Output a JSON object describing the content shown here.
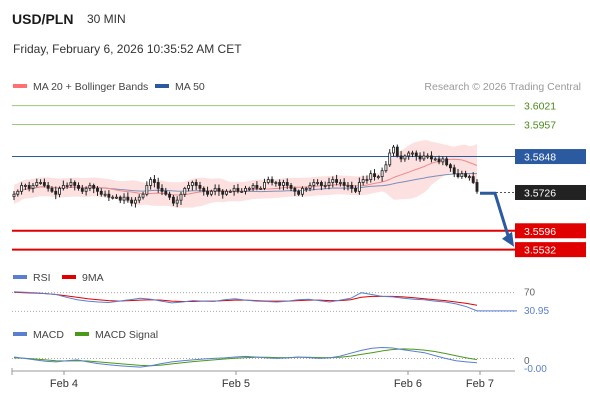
{
  "header": {
    "symbol": "USD/PLN",
    "timeframe": "30 MIN",
    "datetime": "Friday, February 6, 2026 10:35:52 AM CET"
  },
  "legend": {
    "ma20": "MA 20 + Bollinger Bands",
    "ma50": "MA 50",
    "credit": "Research © 2026 Trading Central",
    "ma20_color": "#ff7070",
    "ma50_color": "#2c5aa0"
  },
  "chart_data": {
    "type": "candlestick",
    "ylim": [
      3.549,
      3.604
    ],
    "levels": [
      {
        "value": 3.6021,
        "label": "3.6021",
        "kind": "resistance"
      },
      {
        "value": 3.5957,
        "label": "3.5957",
        "kind": "resistance"
      },
      {
        "value": 3.5848,
        "label": "3.5848",
        "kind": "pivot"
      },
      {
        "value": 3.5726,
        "label": "3.5726",
        "kind": "last"
      },
      {
        "value": 3.5596,
        "label": "3.5596",
        "kind": "target"
      },
      {
        "value": 3.5532,
        "label": "3.5532",
        "kind": "target"
      }
    ],
    "x_ticks": [
      "Feb 4",
      "Feb 5",
      "Feb 6",
      "Feb 7"
    ],
    "closes": [
      3.572,
      3.573,
      3.575,
      3.575,
      3.574,
      3.575,
      3.576,
      3.576,
      3.575,
      3.574,
      3.573,
      3.572,
      3.574,
      3.575,
      3.575,
      3.576,
      3.575,
      3.574,
      3.573,
      3.574,
      3.575,
      3.574,
      3.573,
      3.572,
      3.572,
      3.571,
      3.571,
      3.571,
      3.57,
      3.571,
      3.57,
      3.569,
      3.57,
      3.571,
      3.572,
      3.575,
      3.577,
      3.576,
      3.574,
      3.573,
      3.572,
      3.571,
      3.569,
      3.57,
      3.572,
      3.574,
      3.575,
      3.576,
      3.575,
      3.574,
      3.573,
      3.572,
      3.573,
      3.574,
      3.573,
      3.572,
      3.573,
      3.573,
      3.574,
      3.573,
      3.573,
      3.574,
      3.574,
      3.575,
      3.574,
      3.574,
      3.576,
      3.577,
      3.576,
      3.576,
      3.575,
      3.576,
      3.575,
      3.574,
      3.573,
      3.572,
      3.574,
      3.574,
      3.575,
      3.576,
      3.576,
      3.575,
      3.575,
      3.576,
      3.577,
      3.576,
      3.576,
      3.575,
      3.575,
      3.574,
      3.573,
      3.576,
      3.577,
      3.577,
      3.579,
      3.578,
      3.578,
      3.58,
      3.582,
      3.586,
      3.588,
      3.585,
      3.584,
      3.585,
      3.586,
      3.586,
      3.585,
      3.584,
      3.585,
      3.585,
      3.584,
      3.584,
      3.583,
      3.584,
      3.582,
      3.581,
      3.579,
      3.578,
      3.579,
      3.578,
      3.578,
      3.576,
      3.573
    ],
    "rsi": {
      "legend": [
        "RSI",
        "9MA"
      ],
      "levels": [
        "70",
        "30"
      ],
      "last_label": "30.95",
      "ylim": [
        20,
        80
      ],
      "values": [
        72,
        71,
        70,
        68,
        66,
        60,
        55,
        52,
        50,
        49,
        52,
        55,
        58,
        56,
        52,
        48,
        50,
        53,
        52,
        51,
        55,
        57,
        54,
        52,
        51,
        50,
        52,
        55,
        56,
        53,
        50,
        54,
        58,
        70,
        66,
        62,
        61,
        58,
        56,
        55,
        52,
        50,
        46,
        40,
        31
      ],
      "ma_values": [
        71,
        70,
        69,
        68,
        66,
        63,
        60,
        57,
        55,
        53,
        52,
        53,
        54,
        55,
        54,
        52,
        51,
        51,
        52,
        52,
        53,
        54,
        54,
        53,
        52,
        52,
        52,
        53,
        54,
        54,
        53,
        53,
        55,
        60,
        62,
        62,
        62,
        61,
        59,
        57,
        55,
        53,
        50,
        47,
        43
      ]
    },
    "macd": {
      "legend": [
        "MACD",
        "MACD Signal"
      ],
      "zero_label": "0",
      "last_label": "-0.00",
      "ylim": [
        -0.004,
        0.005
      ],
      "values": [
        0.0005,
        0.0,
        -0.0005,
        -0.001,
        -0.0012,
        -0.0008,
        -0.0005,
        -0.0012,
        -0.0018,
        -0.0022,
        -0.0025,
        -0.0028,
        -0.003,
        -0.0025,
        -0.0018,
        -0.0012,
        -0.0008,
        -0.0005,
        -0.0002,
        0.0,
        0.0002,
        0.0005,
        0.0007,
        0.0005,
        0.0002,
        0.0,
        0.0002,
        0.0005,
        0.0003,
        0.0,
        0.0002,
        0.0008,
        0.0018,
        0.0028,
        0.0035,
        0.0038,
        0.0036,
        0.003,
        0.0025,
        0.002,
        0.001,
        0.0,
        -0.0008,
        -0.0012,
        -0.0015
      ],
      "signal_values": [
        0.0002,
        0.0001,
        -0.0002,
        -0.0005,
        -0.0008,
        -0.0009,
        -0.0008,
        -0.0009,
        -0.0012,
        -0.0015,
        -0.0018,
        -0.0021,
        -0.0024,
        -0.0025,
        -0.0023,
        -0.0019,
        -0.0015,
        -0.0011,
        -0.0008,
        -0.0005,
        -0.0002,
        0.0001,
        0.0003,
        0.0004,
        0.0004,
        0.0003,
        0.0003,
        0.0004,
        0.0004,
        0.0003,
        0.0003,
        0.0004,
        0.0008,
        0.0014,
        0.002,
        0.0026,
        0.0031,
        0.0033,
        0.0032,
        0.0029,
        0.0024,
        0.0017,
        0.0009,
        0.0002,
        -0.0004
      ]
    }
  }
}
